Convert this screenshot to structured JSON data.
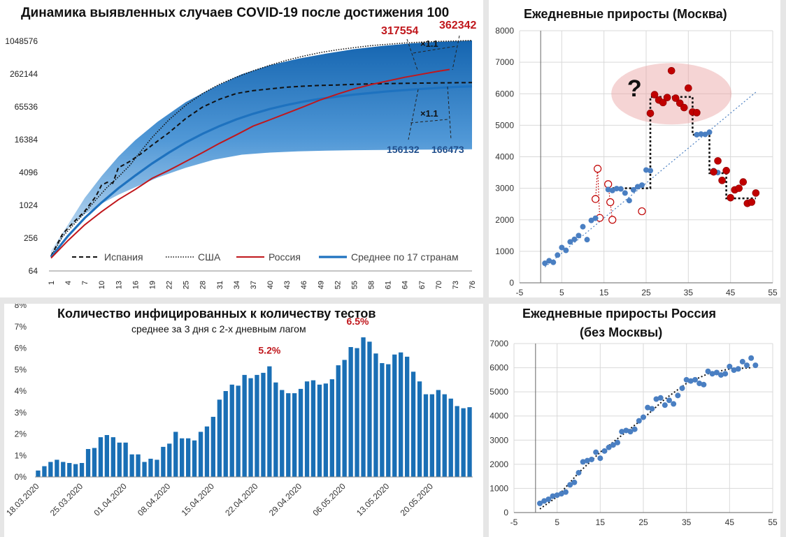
{
  "colors": {
    "spain": "#111111",
    "usa": "#111111",
    "russia": "#c0171c",
    "avg": "#1e72bf",
    "band_dark": "#1565b0",
    "band_light": "#d6e8f7",
    "bar": "#1a6fb5",
    "moscow_blue": "#4a7fc2",
    "moscow_red": "#c00000",
    "gray_bg": "#e6e6e6"
  },
  "panels": [
    {
      "id": "cumulative",
      "title": "Динамика выявленных случаев COVID-19 после достижения 100",
      "annotations": {
        "russia_value": "317554",
        "upper_value": "362342",
        "avg_value": "156132",
        "avg_upper_value": "166473",
        "factor_top": "×1.1",
        "factor_mid": "×1.1"
      }
    },
    {
      "id": "moscow",
      "title": "Ежедневные приросты (Москва)",
      "annotation": "?"
    },
    {
      "id": "tests",
      "title": "Количество инфицированных к количеству тестов",
      "subtitle": "среднее за 3 дня с 2-х дневным лагом",
      "annotations": {
        "peak1": "5.2%",
        "peak2": "6.5%"
      }
    },
    {
      "id": "russia_ex_moscow",
      "title_line1": "Ежедневные приросты Россия",
      "title_line2": "(без Москвы)"
    }
  ],
  "chart_data": [
    {
      "type": "line",
      "title": "Динамика выявленных случаев COVID-19 после достижения 100",
      "scale": "log2",
      "y_ticks": [
        "64",
        "256",
        "1024",
        "4096",
        "16384",
        "65536",
        "262144",
        "1048576"
      ],
      "y_tick_values": [
        64,
        256,
        1024,
        4096,
        16384,
        65536,
        262144,
        1048576
      ],
      "x_ticks": [
        "1",
        "4",
        "7",
        "10",
        "13",
        "16",
        "19",
        "22",
        "25",
        "28",
        "31",
        "34",
        "37",
        "40",
        "43",
        "46",
        "49",
        "52",
        "55",
        "58",
        "61",
        "64",
        "67",
        "70",
        "73",
        "76"
      ],
      "xlim": [
        1,
        76
      ],
      "legend_position": "bottom",
      "band": {
        "x": [
          1,
          4,
          7,
          10,
          13,
          16,
          20,
          25,
          30,
          35,
          40,
          45,
          50,
          55,
          60,
          65,
          70,
          73,
          76
        ],
        "upper": [
          150,
          450,
          1400,
          3500,
          8000,
          16000,
          35000,
          80000,
          150000,
          260000,
          380000,
          500000,
          620000,
          750000,
          860000,
          950000,
          1020000,
          1050000,
          1080000
        ],
        "lower": [
          110,
          380,
          700,
          1100,
          1600,
          2200,
          3300,
          5000,
          7000,
          8700,
          9500,
          10000,
          10300,
          10500,
          10600,
          10700,
          10800,
          10850,
          10900
        ]
      },
      "series": [
        {
          "name": "Испания",
          "style": "dashed",
          "x": [
            1,
            3,
            5,
            7,
            9,
            10,
            11,
            12,
            13,
            15,
            17,
            19,
            22,
            25,
            28,
            31,
            34,
            37,
            40,
            43,
            46,
            49,
            52,
            55,
            58,
            61,
            64,
            67,
            70,
            73,
            76
          ],
          "values": [
            120,
            300,
            500,
            800,
            1500,
            2400,
            2700,
            2600,
            5000,
            6500,
            9000,
            13000,
            22000,
            40000,
            65000,
            90000,
            115000,
            130000,
            140000,
            150000,
            157000,
            162000,
            165000,
            170000,
            173000,
            175000,
            177000,
            178500,
            180000,
            181500,
            183000
          ]
        },
        {
          "name": "США",
          "style": "dotted",
          "x": [
            1,
            3,
            5,
            7,
            9,
            11,
            13,
            15,
            17,
            19,
            22,
            25,
            28,
            31,
            34,
            37,
            40,
            43,
            46,
            49,
            52,
            55,
            58,
            61,
            64,
            67,
            70,
            73,
            76
          ],
          "values": [
            120,
            270,
            450,
            750,
            1300,
            2200,
            3400,
            5500,
            10000,
            18000,
            38000,
            70000,
            115000,
            170000,
            230000,
            300000,
            380000,
            470000,
            560000,
            650000,
            730000,
            800000,
            870000,
            920000,
            970000,
            1010000,
            1040000,
            1060000,
            1080000
          ]
        },
        {
          "name": "Россия",
          "style": "solid",
          "x": [
            1,
            4,
            7,
            10,
            13,
            16,
            19,
            22,
            25,
            28,
            31,
            34,
            37,
            40,
            43,
            46,
            49,
            52,
            55,
            58,
            61,
            64,
            67,
            70,
            72
          ],
          "values": [
            110,
            230,
            450,
            780,
            1300,
            2000,
            3200,
            4500,
            6500,
            9500,
            14000,
            20000,
            29000,
            38000,
            50000,
            66000,
            88000,
            112000,
            140000,
            168000,
            196000,
            228000,
            260000,
            295000,
            317554
          ]
        },
        {
          "name": "Среднее по 17 странам",
          "style": "thick",
          "x": [
            1,
            4,
            7,
            10,
            13,
            16,
            19,
            22,
            25,
            28,
            31,
            34,
            37,
            40,
            43,
            46,
            49,
            52,
            55,
            58,
            61,
            64,
            67,
            70,
            73,
            76
          ],
          "values": [
            115,
            280,
            600,
            1150,
            2100,
            3600,
            6000,
            9500,
            14500,
            21000,
            29000,
            38500,
            49000,
            60000,
            71000,
            82000,
            92000,
            101000,
            110000,
            118000,
            126000,
            133000,
            140000,
            146000,
            152000,
            156132
          ]
        }
      ]
    },
    {
      "type": "scatter",
      "title": "Ежедневные приросты (Москва)",
      "xlim": [
        -5,
        55
      ],
      "ylim": [
        0,
        8000
      ],
      "x_ticks": [
        -5,
        5,
        15,
        25,
        35,
        45,
        55
      ],
      "y_ticks": [
        0,
        1000,
        2000,
        3000,
        4000,
        5000,
        6000,
        7000,
        8000
      ],
      "grid": true,
      "trend": {
        "from": [
          1,
          500
        ],
        "to": [
          51,
          6050
        ],
        "style": "dotted"
      },
      "steps": {
        "x": [
          16,
          26,
          26,
          36,
          36,
          40,
          40,
          44,
          44,
          51
        ],
        "values": [
          3000,
          3000,
          5900,
          5900,
          4700,
          4700,
          3480,
          3480,
          2680,
          2680
        ]
      },
      "blue_points": {
        "x": [
          1,
          2,
          3,
          4,
          5,
          6,
          7,
          8,
          9,
          10,
          11,
          12,
          13,
          16,
          17,
          18,
          19,
          20,
          21,
          22,
          23,
          24,
          25,
          26,
          37,
          38,
          39,
          40,
          41,
          42
        ],
        "values": [
          620,
          700,
          650,
          880,
          1120,
          1030,
          1300,
          1380,
          1500,
          1780,
          1370,
          1980,
          2050,
          2960,
          2930,
          2990,
          2980,
          2850,
          2610,
          2950,
          3050,
          3100,
          3580,
          3560,
          4700,
          4720,
          4710,
          4780,
          3560,
          3500
        ]
      },
      "red_points": {
        "x": [
          26,
          27,
          28,
          29,
          30,
          31,
          32,
          33,
          34,
          35,
          36,
          37,
          41,
          42,
          43,
          44,
          45,
          46,
          47,
          48,
          49,
          50,
          51
        ],
        "values": [
          5380,
          5970,
          5800,
          5720,
          5880,
          6730,
          5860,
          5700,
          5560,
          6180,
          5420,
          5400,
          3520,
          3870,
          3250,
          3560,
          2700,
          2950,
          3000,
          3200,
          2520,
          2560,
          2850
        ]
      },
      "hollow_points": {
        "x": [
          13,
          13.5,
          14,
          16,
          16.5,
          17,
          24
        ],
        "values": [
          2660,
          3620,
          2060,
          3130,
          2560,
          2000,
          2270
        ]
      }
    },
    {
      "type": "bar",
      "title": "Количество инфицированных к количеству тестов",
      "subtitle": "среднее за 3 дня с 2-х дневным лагом",
      "y_ticks": [
        "0%",
        "1%",
        "2%",
        "3%",
        "4%",
        "5%",
        "6%",
        "7%",
        "8%"
      ],
      "ylim": [
        0,
        8
      ],
      "x_ticks": [
        "18.03.2020",
        "25.03.2020",
        "01.04.2020",
        "08.04.2020",
        "15.04.2020",
        "22.04.2020",
        "29.04.2020",
        "06.05.2020",
        "13.05.2020",
        "20.05.2020"
      ],
      "values": [
        0.3,
        0.5,
        0.7,
        0.8,
        0.7,
        0.65,
        0.6,
        0.65,
        1.3,
        1.35,
        1.85,
        1.95,
        1.85,
        1.6,
        1.6,
        1.05,
        1.05,
        0.7,
        0.85,
        0.8,
        1.4,
        1.55,
        2.1,
        1.8,
        1.8,
        1.7,
        2.1,
        2.35,
        2.8,
        3.6,
        4.0,
        4.3,
        4.25,
        4.75,
        4.6,
        4.75,
        4.85,
        5.15,
        4.4,
        4.05,
        3.9,
        3.9,
        4.1,
        4.45,
        4.5,
        4.3,
        4.35,
        4.55,
        5.2,
        5.45,
        6.05,
        6.0,
        6.5,
        6.3,
        5.75,
        5.3,
        5.25,
        5.7,
        5.8,
        5.6,
        4.9,
        4.45,
        3.85,
        3.85,
        4.05,
        3.85,
        3.65,
        3.3,
        3.2,
        3.25
      ],
      "peak_labels": [
        "5.2%",
        "6.5%"
      ]
    },
    {
      "type": "scatter",
      "title": "Ежедневные приросты Россия (без Москвы)",
      "xlim": [
        -5,
        55
      ],
      "ylim": [
        0,
        7000
      ],
      "x_ticks": [
        -5,
        5,
        15,
        25,
        35,
        45,
        55
      ],
      "y_ticks": [
        0,
        1000,
        2000,
        3000,
        4000,
        5000,
        6000,
        7000
      ],
      "grid": true,
      "trend": {
        "x": [
          1,
          5,
          10,
          15,
          20,
          25,
          30,
          35,
          40,
          45,
          50
        ],
        "values": [
          150,
          650,
          1650,
          2500,
          3200,
          3900,
          4700,
          5350,
          5750,
          5950,
          6000
        ],
        "style": "dotted"
      },
      "points": {
        "x": [
          1,
          2,
          3,
          4,
          5,
          6,
          7,
          8,
          9,
          10,
          11,
          12,
          13,
          14,
          15,
          16,
          17,
          18,
          19,
          20,
          21,
          22,
          23,
          24,
          25,
          26,
          27,
          28,
          29,
          30,
          31,
          32,
          33,
          34,
          35,
          36,
          37,
          38,
          39,
          40,
          41,
          42,
          43,
          44,
          45,
          46,
          47,
          48,
          49,
          50,
          51
        ],
        "values": [
          380,
          480,
          550,
          680,
          720,
          780,
          850,
          1150,
          1250,
          1650,
          2100,
          2150,
          2200,
          2500,
          2250,
          2550,
          2700,
          2800,
          2900,
          3350,
          3400,
          3350,
          3450,
          3800,
          3950,
          4350,
          4300,
          4700,
          4750,
          4450,
          4650,
          4500,
          4850,
          5150,
          5500,
          5450,
          5500,
          5350,
          5300,
          5850,
          5750,
          5800,
          5700,
          5750,
          6050,
          5900,
          5950,
          6250,
          6100,
          6400,
          6100
        ]
      }
    }
  ]
}
